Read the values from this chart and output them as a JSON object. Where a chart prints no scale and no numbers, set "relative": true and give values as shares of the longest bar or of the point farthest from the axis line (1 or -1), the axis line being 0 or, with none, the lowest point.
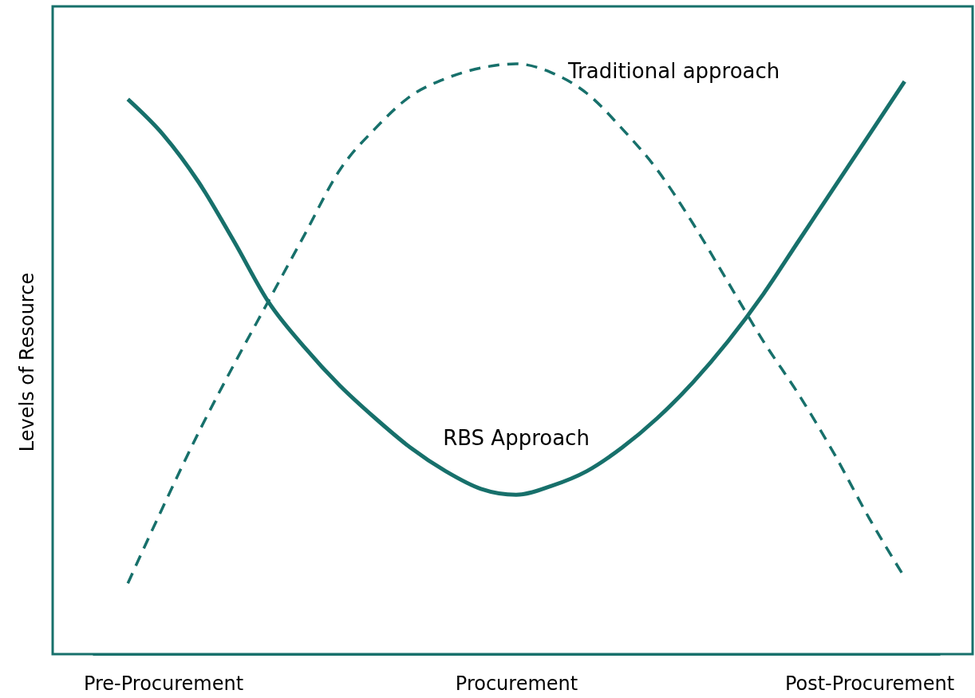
{
  "chart_data": {
    "type": "line",
    "relative": true,
    "ylabel": "Levels of Resource",
    "categories": [
      null,
      null,
      "Pre-Procurement",
      null,
      null,
      null,
      null,
      null,
      null,
      null,
      null,
      null,
      "Procurement",
      null,
      null,
      null,
      null,
      null,
      null,
      null,
      null,
      null,
      "Post-Procurement",
      null,
      null
    ],
    "series": [
      {
        "name": "Traditional approach",
        "color": "#17706b",
        "line_style": "dashed",
        "values": [
          null,
          0.12,
          0.25,
          0.375,
          0.49,
          0.6,
          0.71,
          0.82,
          0.89,
          0.945,
          0.975,
          0.993,
          1,
          0.985,
          0.95,
          0.89,
          0.82,
          0.73,
          0.63,
          0.53,
          0.44,
          0.34,
          0.23,
          0.13,
          null
        ]
      },
      {
        "name": "RBS Approach",
        "color": "#17706b",
        "line_style": "solid",
        "values": [
          null,
          0.94,
          0.88,
          0.8,
          0.7,
          0.595,
          0.52,
          0.455,
          0.4,
          0.35,
          0.31,
          0.28,
          0.27,
          0.285,
          0.31,
          0.35,
          0.4,
          0.46,
          0.53,
          0.61,
          0.7,
          0.79,
          0.88,
          0.97,
          null
        ]
      }
    ]
  }
}
